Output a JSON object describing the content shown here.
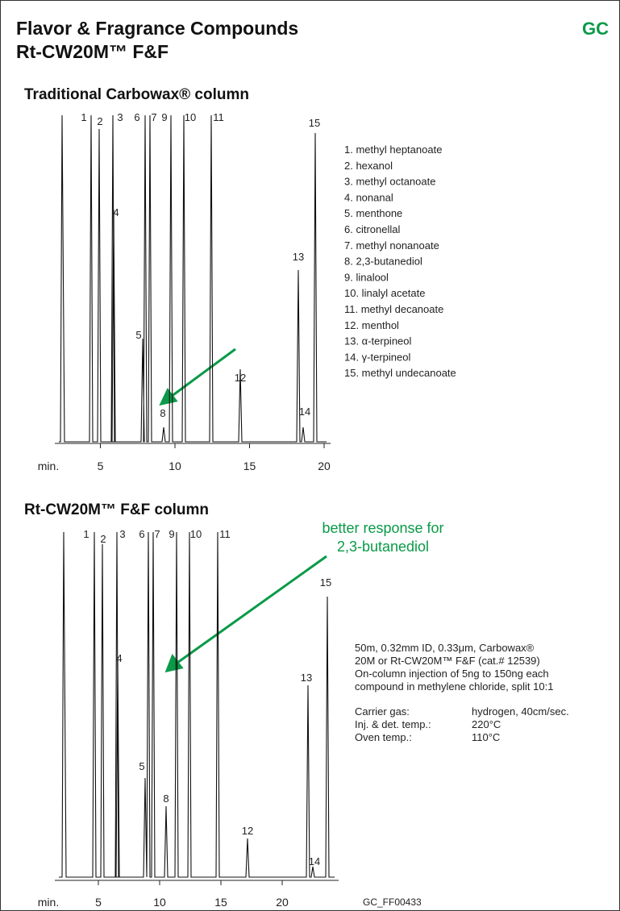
{
  "header": {
    "title_lines": [
      "Flavor & Fragrance Compounds",
      "Rt-CW20M™ F&F"
    ],
    "badge": "GC"
  },
  "chromatograms": [
    {
      "title": "Traditional Carbowax® column",
      "axis_unit": "min.",
      "ticks": [
        5,
        10,
        15,
        20
      ],
      "peak_labels": [
        1,
        2,
        3,
        4,
        5,
        6,
        7,
        8,
        9,
        10,
        11,
        12,
        13,
        14,
        15
      ]
    },
    {
      "title": "Rt-CW20M™ F&F column",
      "axis_unit": "min.",
      "ticks": [
        5,
        10,
        15,
        20
      ],
      "peak_labels": [
        1,
        2,
        3,
        4,
        5,
        6,
        7,
        8,
        9,
        10,
        11,
        12,
        13,
        14,
        15
      ]
    }
  ],
  "compounds": [
    "1. methyl heptanoate",
    "2. hexanol",
    "3. methyl octanoate",
    "4. nonanal",
    "5. menthone",
    "6. citronellal",
    "7. methyl nonanoate",
    "8. 2,3-butanediol",
    "9. linalool",
    "10. linalyl acetate",
    "11. methyl decanoate",
    "12. menthol",
    "13. α-terpineol",
    "14. γ-terpineol",
    "15. methyl undecanoate"
  ],
  "annotation": [
    "better response for",
    "2,3-butanediol"
  ],
  "conditions": {
    "column_lines": [
      "50m, 0.32mm ID, 0.33μm,  Carbowax® 20M or Rt-CW20M™ F&F (cat.# 12539)"
    ],
    "column_wrapped": [
      "50m, 0.32mm ID, 0.33μm,  Carbowax®",
      "20M or Rt-CW20M™ F&F (cat.# 12539)",
      "On-column injection of 5ng to 150ng each",
      "compound in methylene chloride, split 10:1"
    ],
    "rows": [
      [
        "Carrier gas:",
        "hydrogen, 40cm/sec."
      ],
      [
        "Inj. & det. temp.:",
        "220°C"
      ],
      [
        "Oven temp.:",
        "110°C"
      ]
    ]
  },
  "figure_id": "GC_FF00433"
}
